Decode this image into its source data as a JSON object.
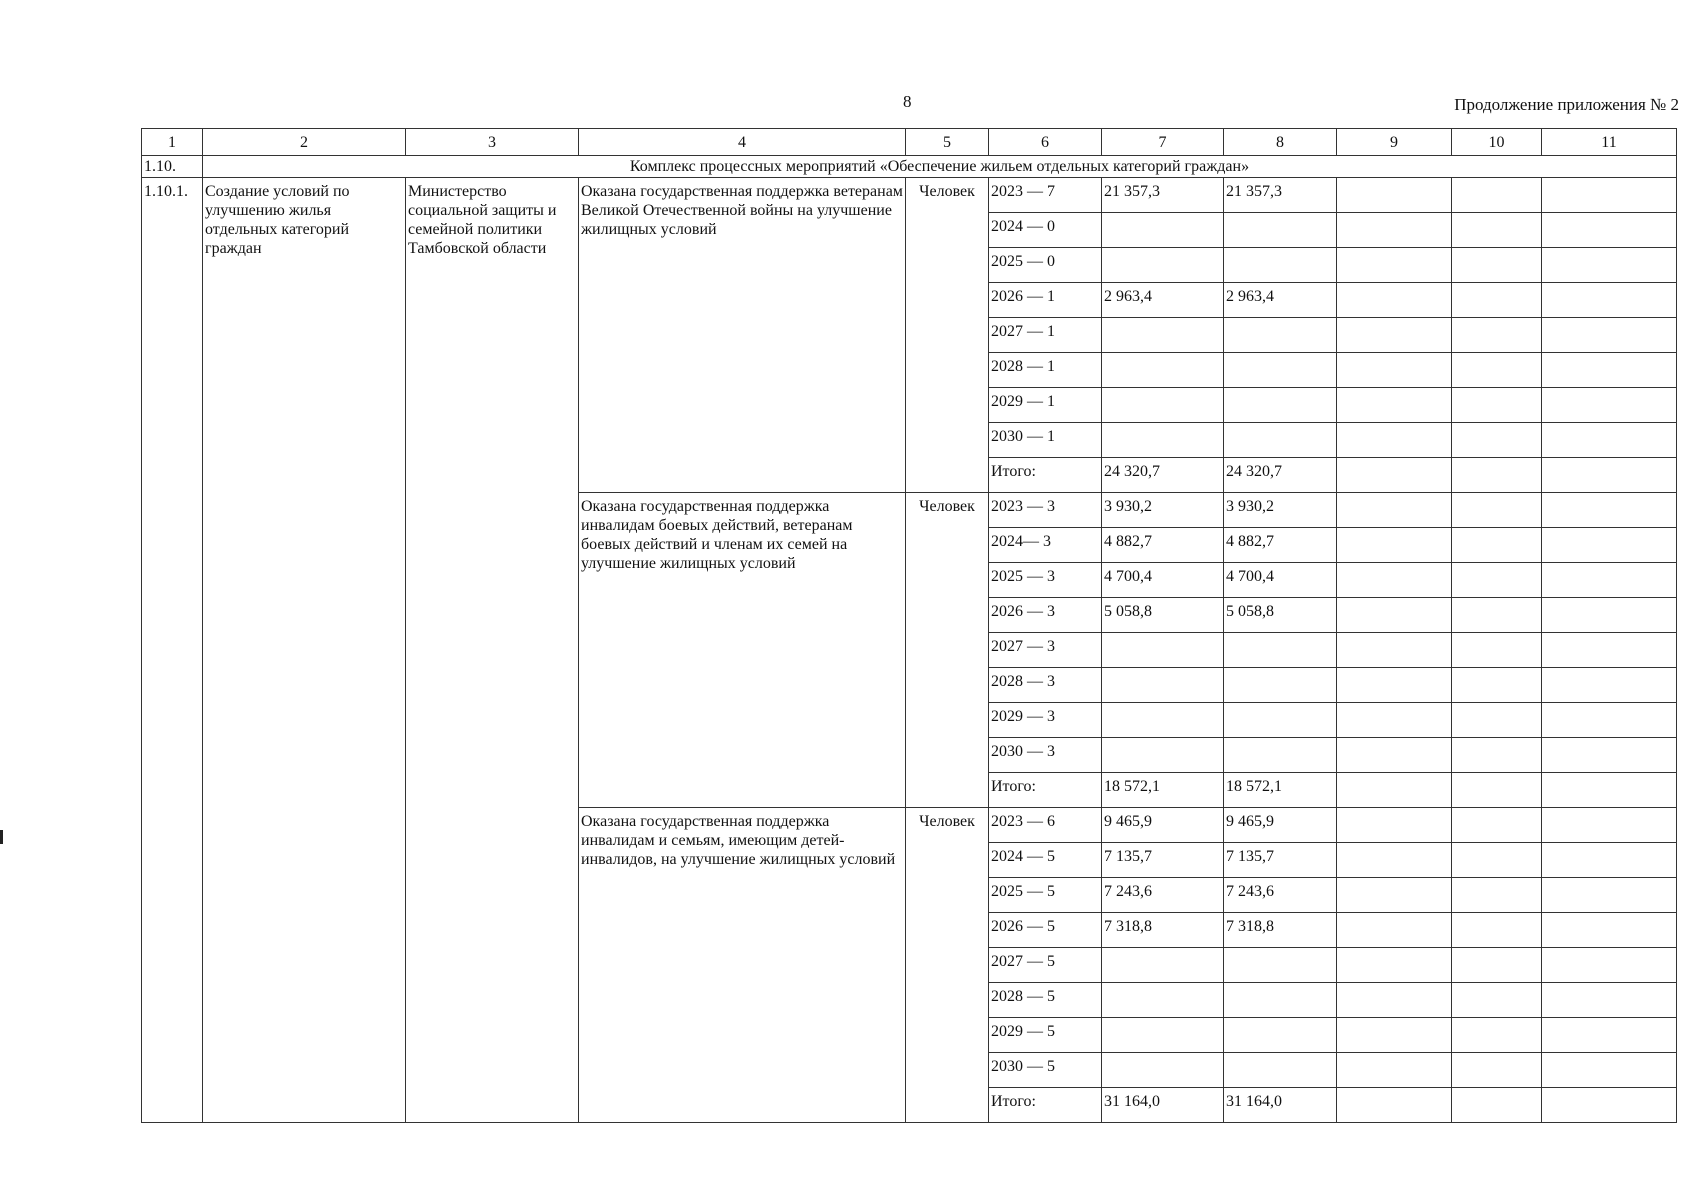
{
  "page_number": "8",
  "continuation": "Продолжение приложения № 2",
  "columns": [
    "1",
    "2",
    "3",
    "4",
    "5",
    "6",
    "7",
    "8",
    "9",
    "10",
    "11"
  ],
  "section": {
    "num": "1.10.",
    "title": "Комплекс процессных мероприятий «Обеспечение жильем отдельных категорий граждан»"
  },
  "item": {
    "num": "1.10.1.",
    "name": "Создание условий по улучшению жилья отдельных категорий граждан",
    "executor": "Министерство социальной защиты и семейной политики Тамбовской области",
    "results": [
      {
        "text": "Оказана государственная поддержка ветеранам Великой Отечественной войны на улучшение жилищных условий",
        "unit": "Человек",
        "rows": [
          [
            "2023 — 7",
            "21 357,3",
            "21 357,3"
          ],
          [
            "2024 — 0",
            "",
            ""
          ],
          [
            "2025 — 0",
            "",
            ""
          ],
          [
            "2026 — 1",
            "2 963,4",
            "2 963,4"
          ],
          [
            "2027 — 1",
            "",
            ""
          ],
          [
            "2028 — 1",
            "",
            ""
          ],
          [
            "2029 — 1",
            "",
            ""
          ],
          [
            "2030 — 1",
            "",
            ""
          ],
          [
            "Итого:",
            "24 320,7",
            "24 320,7"
          ]
        ]
      },
      {
        "text": "Оказана государственная поддержка инвалидам боевых действий, ветеранам боевых действий и членам их семей на улучшение жилищных условий",
        "unit": "Человек",
        "rows": [
          [
            "2023 — 3",
            "3 930,2",
            "3 930,2"
          ],
          [
            "2024— 3",
            "4 882,7",
            "4 882,7"
          ],
          [
            "2025 — 3",
            "4 700,4",
            "4 700,4"
          ],
          [
            "2026 — 3",
            "5 058,8",
            "5 058,8"
          ],
          [
            "2027 — 3",
            "",
            ""
          ],
          [
            "2028 — 3",
            "",
            ""
          ],
          [
            "2029 — 3",
            "",
            ""
          ],
          [
            "2030 — 3",
            "",
            ""
          ],
          [
            "Итого:",
            "18 572,1",
            "18 572,1"
          ]
        ]
      },
      {
        "text": "Оказана государственная поддержка инвалидам и семьям, имеющим детей-инвалидов, на улучшение жилищных условий",
        "unit": "Человек",
        "rows": [
          [
            "2023 — 6",
            "9 465,9",
            "9 465,9"
          ],
          [
            "2024 — 5",
            "7 135,7",
            "7 135,7"
          ],
          [
            "2025 — 5",
            "7 243,6",
            "7 243,6"
          ],
          [
            "2026 — 5",
            "7 318,8",
            "7 318,8"
          ],
          [
            "2027 — 5",
            "",
            ""
          ],
          [
            "2028 — 5",
            "",
            ""
          ],
          [
            "2029 — 5",
            "",
            ""
          ],
          [
            "2030 — 5",
            "",
            ""
          ],
          [
            "Итого:",
            "31 164,0",
            "31 164,0"
          ]
        ]
      }
    ]
  }
}
